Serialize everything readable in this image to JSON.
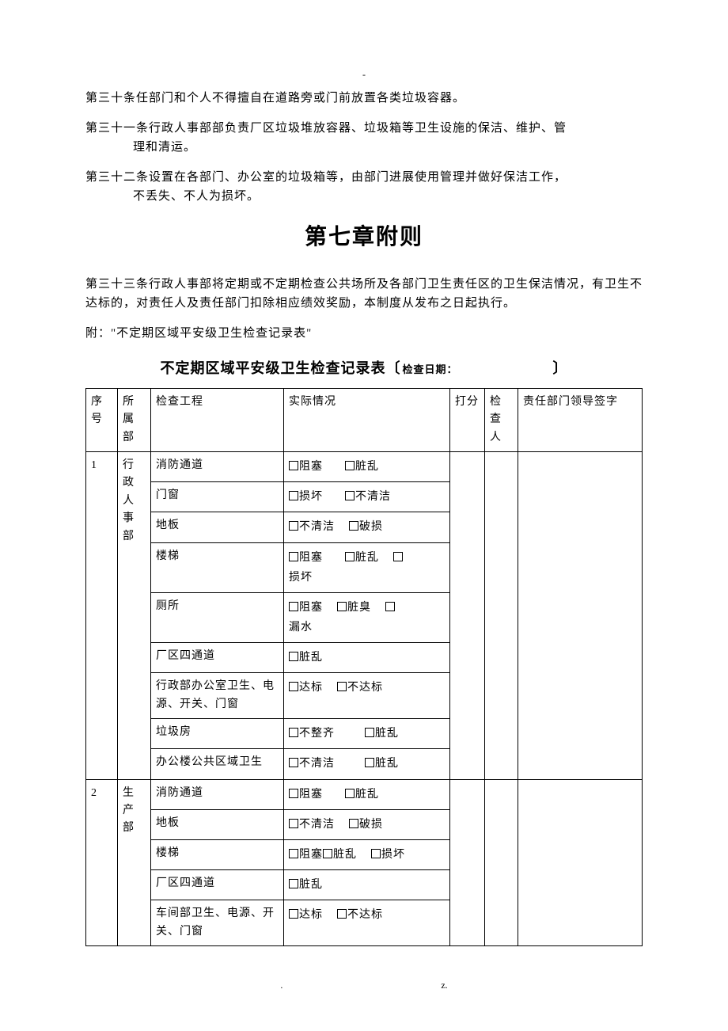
{
  "top_dash": "-",
  "articles": {
    "a30": "第三十条任部门和个人不得擅自在道路旁或门前放置各类垃圾容器。",
    "a31_l1": "第三十一条行政人事部部负责厂区垃圾堆放容器、垃圾箱等卫生设施的保洁、维护、管",
    "a31_l2": "理和清运。",
    "a32_l1": "第三十二条设置在各部门、办公室的垃圾箱等，由部门进展使用管理并做好保洁工作，",
    "a32_l2": "不丢失、不人为损坏。"
  },
  "chapter_title": "第七章附则",
  "a33": "第三十三条行政人事部将定期或不定期检查公共场所及各部门卫生责任区的卫生保洁情况，有卫生不达标的，对责任人及责任部门扣除相应绩效奖励，本制度从发布之日起执行。",
  "attachment_note": "附：\"不定期区域平安级卫生检查记录表\"",
  "table_title": "不定期区域平安级卫生检查记录表",
  "table_title_bracket_open": "〔",
  "table_title_suffix": "检查日期：",
  "table_title_bracket_close": "〕",
  "headers": {
    "seq": "序号",
    "dept": "所属部",
    "item": "检查工程",
    "status": "实际情况",
    "score": "打分",
    "inspector": "检查人",
    "sign": "责任部门领导签字"
  },
  "groups": [
    {
      "seq": "1",
      "dept": "行政人事部",
      "rows": [
        {
          "item": "消防通道",
          "opts": [
            {
              "t": "阻塞",
              "g": "lg"
            },
            {
              "t": "脏乱"
            }
          ]
        },
        {
          "item": "门窗",
          "opts": [
            {
              "t": "损坏",
              "g": "lg"
            },
            {
              "t": "不清洁"
            }
          ]
        },
        {
          "item": "地板",
          "opts": [
            {
              "t": "不清洁",
              "g": "md"
            },
            {
              "t": "破损"
            }
          ]
        },
        {
          "item": "楼梯",
          "opts": [
            {
              "t": "阻塞",
              "g": "lg"
            },
            {
              "t": "脏乱",
              "g": "md"
            },
            {
              "t": "",
              "nl": true
            },
            {
              "after": "损坏"
            }
          ]
        },
        {
          "item": "厕所",
          "opts": [
            {
              "t": "阻塞",
              "g": "md"
            },
            {
              "t": "脏臭",
              "g": "md"
            },
            {
              "t": "",
              "nl": true
            },
            {
              "after": "漏水"
            }
          ]
        },
        {
          "item": "厂区四通道",
          "opts": [
            {
              "t": "脏乱"
            }
          ]
        },
        {
          "item": "行政部办公室卫生、电源、开关、门窗",
          "opts": [
            {
              "t": "达标",
              "g": "md"
            },
            {
              "t": "不达标"
            }
          ]
        },
        {
          "item": "垃圾房",
          "opts": [
            {
              "t": "不整齐",
              "g": "xl"
            },
            {
              "t": "脏乱"
            }
          ]
        },
        {
          "item": "办公楼公共区域卫生",
          "opts": [
            {
              "t": "不清洁",
              "g": "xl"
            },
            {
              "t": "脏乱"
            }
          ]
        }
      ]
    },
    {
      "seq": "2",
      "dept": "生产部",
      "rows": [
        {
          "item": "消防通道",
          "opts": [
            {
              "t": "阻塞",
              "g": "lg"
            },
            {
              "t": "脏乱"
            }
          ]
        },
        {
          "item": "地板",
          "opts": [
            {
              "t": "不清洁",
              "g": "md"
            },
            {
              "t": "破损"
            }
          ]
        },
        {
          "item": "楼梯",
          "opts": [
            {
              "t": "阻塞",
              "g": "none"
            },
            {
              "t": "脏乱",
              "g": "md"
            },
            {
              "t": "损坏"
            }
          ]
        },
        {
          "item": "厂区四通道",
          "opts": [
            {
              "t": "脏乱"
            }
          ]
        },
        {
          "item": "车间部卫生、电源、开关、门窗",
          "opts": [
            {
              "t": "达标",
              "g": "md"
            },
            {
              "t": "不达标"
            }
          ]
        }
      ]
    }
  ],
  "footer_left": ".",
  "footer_right": "z."
}
